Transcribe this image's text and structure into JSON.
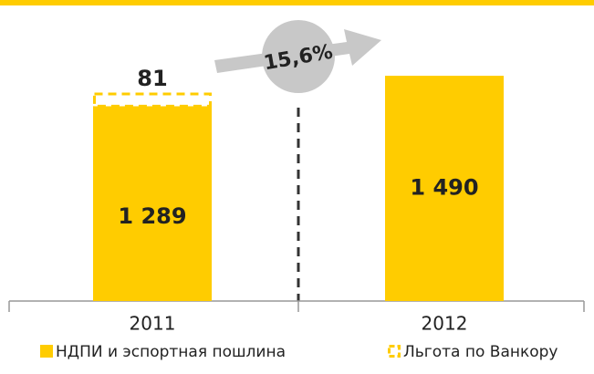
{
  "chart_data": {
    "type": "stacked_bar",
    "categories": [
      "2011",
      "2012"
    ],
    "series": [
      {
        "name": "НДПИ и эспортная пошлина",
        "color": "#ffcc00",
        "values": [
          1289,
          1490
        ],
        "value_labels": [
          "1 289",
          "1 490"
        ]
      },
      {
        "name": "Льгота по Ванкору",
        "color": "#ffcc00",
        "values": [
          81,
          null
        ],
        "value_labels": [
          "81",
          null
        ]
      }
    ],
    "ylim": [
      0,
      1750
    ],
    "annotation": "15,6%"
  }
}
